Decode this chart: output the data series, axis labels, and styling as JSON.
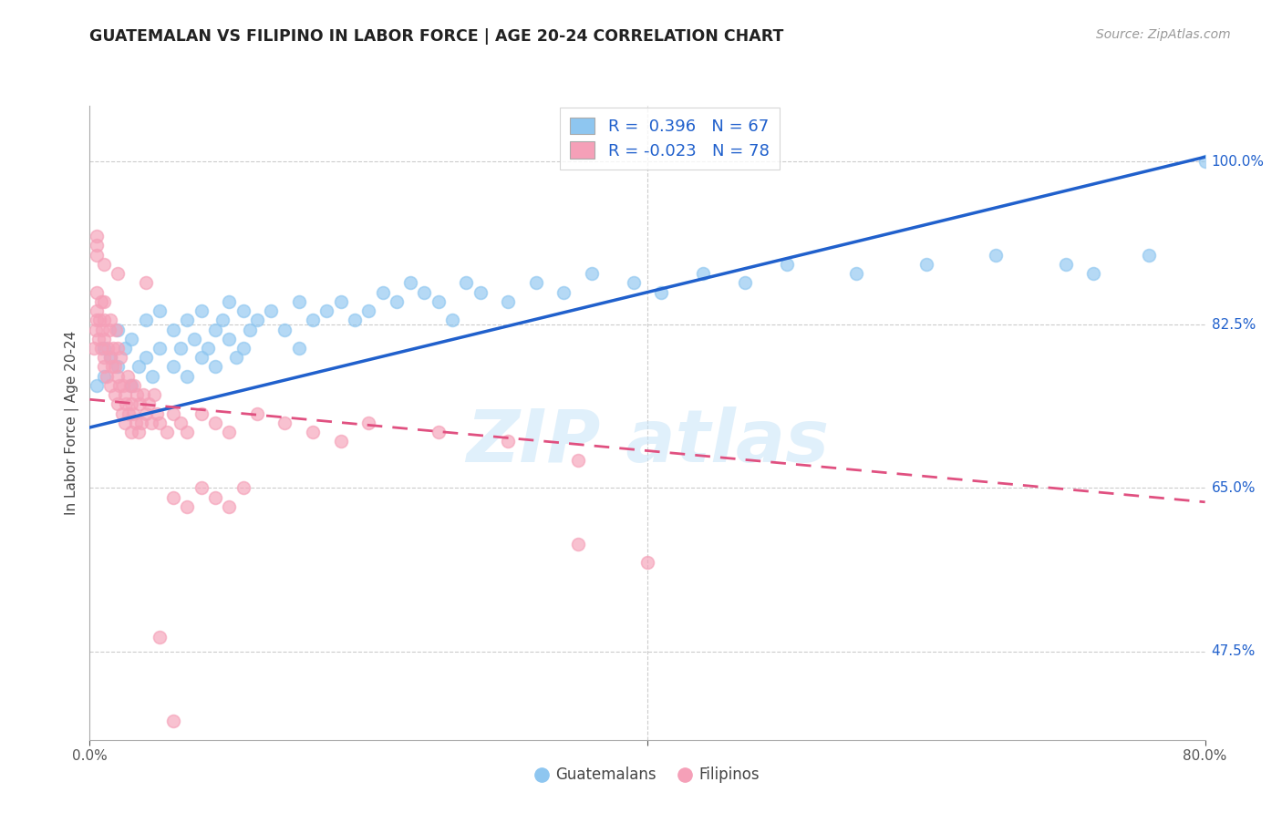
{
  "title": "GUATEMALAN VS FILIPINO IN LABOR FORCE | AGE 20-24 CORRELATION CHART",
  "source": "Source: ZipAtlas.com",
  "ylabel": "In Labor Force | Age 20-24",
  "yticks": [
    0.475,
    0.65,
    0.825,
    1.0
  ],
  "ytick_labels": [
    "47.5%",
    "65.0%",
    "82.5%",
    "100.0%"
  ],
  "xmin": 0.0,
  "xmax": 0.8,
  "ymin": 0.38,
  "ymax": 1.06,
  "guatemalan_R": 0.396,
  "guatemalan_N": 67,
  "filipino_R": -0.023,
  "filipino_N": 78,
  "blue_color": "#8ec6f0",
  "pink_color": "#f5a0b8",
  "blue_line_color": "#2060cc",
  "pink_line_color": "#e05080",
  "legend_label_guatemalans": "Guatemalans",
  "legend_label_filipinos": "Filipinos",
  "blue_trend_x0": 0.0,
  "blue_trend_x1": 0.8,
  "blue_trend_y0": 0.715,
  "blue_trend_y1": 1.005,
  "pink_trend_x0": 0.0,
  "pink_trend_x1": 0.8,
  "pink_trend_y0": 0.745,
  "pink_trend_y1": 0.635,
  "guatemalan_x": [
    0.005,
    0.01,
    0.01,
    0.015,
    0.02,
    0.02,
    0.025,
    0.03,
    0.03,
    0.035,
    0.04,
    0.04,
    0.045,
    0.05,
    0.05,
    0.06,
    0.06,
    0.065,
    0.07,
    0.07,
    0.075,
    0.08,
    0.08,
    0.085,
    0.09,
    0.09,
    0.095,
    0.1,
    0.1,
    0.105,
    0.11,
    0.11,
    0.115,
    0.12,
    0.13,
    0.14,
    0.15,
    0.15,
    0.16,
    0.17,
    0.18,
    0.19,
    0.2,
    0.21,
    0.22,
    0.23,
    0.24,
    0.25,
    0.26,
    0.27,
    0.28,
    0.3,
    0.32,
    0.34,
    0.36,
    0.39,
    0.41,
    0.44,
    0.47,
    0.5,
    0.55,
    0.6,
    0.65,
    0.7,
    0.72,
    0.76,
    0.8
  ],
  "guatemalan_y": [
    0.76,
    0.77,
    0.8,
    0.79,
    0.78,
    0.82,
    0.8,
    0.76,
    0.81,
    0.78,
    0.79,
    0.83,
    0.77,
    0.8,
    0.84,
    0.78,
    0.82,
    0.8,
    0.77,
    0.83,
    0.81,
    0.79,
    0.84,
    0.8,
    0.82,
    0.78,
    0.83,
    0.81,
    0.85,
    0.79,
    0.8,
    0.84,
    0.82,
    0.83,
    0.84,
    0.82,
    0.8,
    0.85,
    0.83,
    0.84,
    0.85,
    0.83,
    0.84,
    0.86,
    0.85,
    0.87,
    0.86,
    0.85,
    0.83,
    0.87,
    0.86,
    0.85,
    0.87,
    0.86,
    0.88,
    0.87,
    0.86,
    0.88,
    0.87,
    0.89,
    0.88,
    0.89,
    0.9,
    0.89,
    0.88,
    0.9,
    1.0
  ],
  "filipino_x": [
    0.003,
    0.004,
    0.005,
    0.005,
    0.005,
    0.006,
    0.007,
    0.008,
    0.008,
    0.009,
    0.01,
    0.01,
    0.01,
    0.01,
    0.01,
    0.012,
    0.013,
    0.014,
    0.015,
    0.015,
    0.015,
    0.016,
    0.017,
    0.018,
    0.018,
    0.019,
    0.02,
    0.02,
    0.02,
    0.021,
    0.022,
    0.023,
    0.024,
    0.025,
    0.025,
    0.026,
    0.027,
    0.028,
    0.029,
    0.03,
    0.03,
    0.031,
    0.032,
    0.033,
    0.034,
    0.035,
    0.036,
    0.037,
    0.038,
    0.04,
    0.042,
    0.044,
    0.046,
    0.048,
    0.05,
    0.055,
    0.06,
    0.065,
    0.07,
    0.08,
    0.09,
    0.1,
    0.12,
    0.14,
    0.16,
    0.18,
    0.2,
    0.25,
    0.3,
    0.35,
    0.06,
    0.07,
    0.08,
    0.09,
    0.1,
    0.11,
    0.35,
    0.4
  ],
  "filipino_y": [
    0.8,
    0.82,
    0.84,
    0.83,
    0.86,
    0.81,
    0.83,
    0.85,
    0.8,
    0.82,
    0.78,
    0.81,
    0.83,
    0.85,
    0.79,
    0.77,
    0.8,
    0.82,
    0.76,
    0.79,
    0.83,
    0.78,
    0.8,
    0.75,
    0.78,
    0.82,
    0.74,
    0.77,
    0.8,
    0.76,
    0.79,
    0.73,
    0.76,
    0.72,
    0.75,
    0.74,
    0.77,
    0.73,
    0.76,
    0.71,
    0.74,
    0.73,
    0.76,
    0.72,
    0.75,
    0.71,
    0.74,
    0.72,
    0.75,
    0.73,
    0.74,
    0.72,
    0.75,
    0.73,
    0.72,
    0.71,
    0.73,
    0.72,
    0.71,
    0.73,
    0.72,
    0.71,
    0.73,
    0.72,
    0.71,
    0.7,
    0.72,
    0.71,
    0.7,
    0.68,
    0.64,
    0.63,
    0.65,
    0.64,
    0.63,
    0.65,
    0.59,
    0.57
  ],
  "filipino_extra_x": [
    0.005,
    0.005,
    0.005,
    0.01,
    0.02,
    0.04,
    0.05,
    0.06
  ],
  "filipino_extra_y": [
    0.9,
    0.91,
    0.92,
    0.89,
    0.88,
    0.87,
    0.49,
    0.4
  ]
}
